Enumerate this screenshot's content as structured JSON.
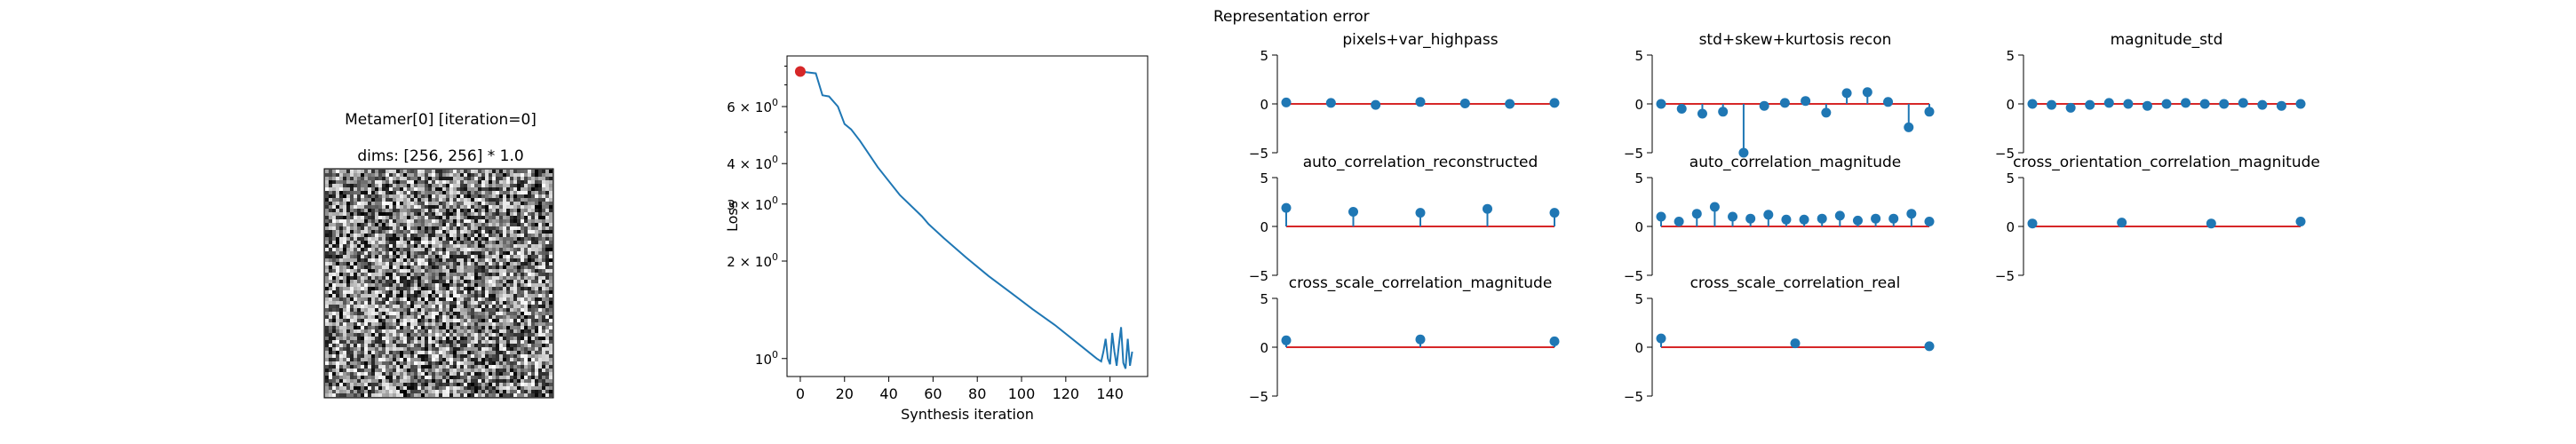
{
  "figure": {
    "image_panel": {
      "title_line1": "Metamer[0] [iteration=0]",
      "title_line2": "dims: [256, 256] * 1.0"
    },
    "representation_title": "Representation error"
  },
  "chart_data": [
    {
      "type": "image",
      "title": "Metamer[0] [iteration=0]\ndims: [256, 256] * 1.0",
      "content": "grayscale uniform noise",
      "dims": [
        256,
        256
      ]
    },
    {
      "type": "line",
      "xlabel": "Synthesis iteration",
      "ylabel": "Loss",
      "yscale": "log",
      "xlim": [
        -6,
        157
      ],
      "ylim": [
        0.88,
        8.6
      ],
      "xticks": [
        0,
        20,
        40,
        60,
        80,
        100,
        120,
        140
      ],
      "yticks": [
        {
          "value": 1,
          "label": "10^0"
        },
        {
          "value": 2,
          "label": "2 × 10^0"
        },
        {
          "value": 3,
          "label": "3 × 10^0"
        },
        {
          "value": 4,
          "label": "4 × 10^0"
        },
        {
          "value": 6,
          "label": "6 × 10^0"
        }
      ],
      "series": [
        {
          "color": "#1f77b4",
          "points": [
            [
              0,
              7.7
            ],
            [
              7,
              7.6
            ],
            [
              10,
              6.5
            ],
            [
              13,
              6.45
            ],
            [
              17,
              6.0
            ],
            [
              20,
              5.3
            ],
            [
              23,
              5.1
            ],
            [
              27,
              4.7
            ],
            [
              35,
              3.9
            ],
            [
              45,
              3.2
            ],
            [
              55,
              2.75
            ],
            [
              58,
              2.6
            ],
            [
              65,
              2.35
            ],
            [
              75,
              2.05
            ],
            [
              85,
              1.8
            ],
            [
              95,
              1.6
            ],
            [
              105,
              1.42
            ],
            [
              115,
              1.27
            ],
            [
              125,
              1.12
            ],
            [
              134,
              1.0
            ],
            [
              136,
              0.98
            ],
            [
              137,
              1.05
            ],
            [
              138,
              1.15
            ],
            [
              139,
              1.0
            ],
            [
              140,
              0.96
            ],
            [
              141,
              1.2
            ],
            [
              142,
              1.05
            ],
            [
              143,
              0.95
            ],
            [
              144,
              1.1
            ],
            [
              145,
              1.25
            ],
            [
              146,
              0.97
            ],
            [
              147,
              0.93
            ],
            [
              148,
              1.15
            ],
            [
              149,
              0.95
            ],
            [
              150,
              1.05
            ]
          ]
        }
      ],
      "marker": {
        "x": 0,
        "y": 7.7,
        "color": "#d62728"
      }
    },
    {
      "type": "stem",
      "title": "pixels+var_highpass",
      "ylim": [
        -5,
        5
      ],
      "yticks": [
        -5,
        0,
        5
      ],
      "values": [
        0.15,
        0.1,
        -0.1,
        0.2,
        0.05,
        0.0,
        0.1
      ]
    },
    {
      "type": "stem",
      "title": "std+skew+kurtosis recon",
      "ylim": [
        -5,
        5
      ],
      "yticks": [
        -5,
        0,
        5
      ],
      "values": [
        0.0,
        -0.5,
        -1.0,
        -0.8,
        -5.0,
        -0.2,
        0.1,
        0.3,
        -0.9,
        1.1,
        1.2,
        0.2,
        -2.4,
        -0.8
      ]
    },
    {
      "type": "stem",
      "title": "magnitude_std",
      "ylim": [
        -5,
        5
      ],
      "yticks": [
        -5,
        0,
        5
      ],
      "values": [
        0.0,
        -0.1,
        -0.4,
        -0.1,
        0.1,
        0.0,
        -0.2,
        0.0,
        0.1,
        0.0,
        0.0,
        0.1,
        -0.1,
        -0.2,
        0.0
      ]
    },
    {
      "type": "stem",
      "title": "auto_correlation_reconstructed",
      "ylim": [
        -5,
        5
      ],
      "yticks": [
        -5,
        0,
        5
      ],
      "values": [
        1.9,
        1.5,
        1.4,
        1.8,
        1.4
      ]
    },
    {
      "type": "stem",
      "title": "auto_correlation_magnitude",
      "ylim": [
        -5,
        5
      ],
      "yticks": [
        -5,
        0,
        5
      ],
      "values": [
        1.0,
        0.5,
        1.3,
        2.0,
        1.0,
        0.8,
        1.2,
        0.7,
        0.7,
        0.8,
        1.1,
        0.6,
        0.8,
        0.8,
        1.3,
        0.5
      ]
    },
    {
      "type": "stem",
      "title": "cross_orientation_correlation_magnitude",
      "ylim": [
        -5,
        5
      ],
      "yticks": [
        -5,
        0,
        5
      ],
      "values": [
        0.3,
        0.4,
        0.3,
        0.5
      ]
    },
    {
      "type": "stem",
      "title": "cross_scale_correlation_magnitude",
      "ylim": [
        -5,
        5
      ],
      "yticks": [
        -5,
        0,
        5
      ],
      "values": [
        0.7,
        0.8,
        0.6
      ]
    },
    {
      "type": "stem",
      "title": "cross_scale_correlation_real",
      "ylim": [
        -5,
        5
      ],
      "yticks": [
        -5,
        0,
        5
      ],
      "values": [
        0.9,
        0.4,
        0.1
      ]
    }
  ]
}
